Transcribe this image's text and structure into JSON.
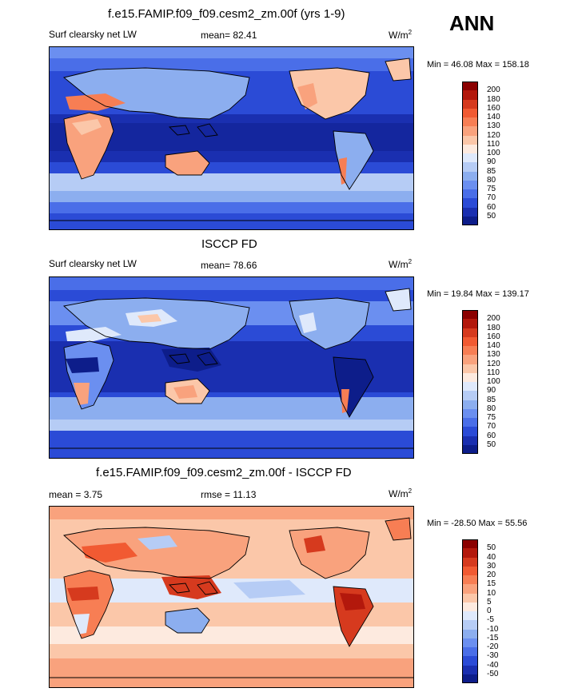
{
  "season": "ANN",
  "panels": [
    {
      "title": "f.e15.FAMIP.f09_f09.cesm2_zm.00f (yrs 1-9)",
      "left_label": "Surf clearsky net LW",
      "center_label": "mean=  82.41",
      "units": "W/m",
      "units_sup": "2",
      "minmax": "Min =  46.08 Max = 158.18",
      "levels": [
        "200",
        "180",
        "160",
        "140",
        "130",
        "120",
        "110",
        "100",
        "90",
        "85",
        "80",
        "75",
        "70",
        "60",
        "50"
      ],
      "colors": [
        "#8b0000",
        "#b3180c",
        "#d63a1e",
        "#f15a32",
        "#f77e54",
        "#f9a27d",
        "#fbc7a9",
        "#fdeadf",
        "#dfe9fb",
        "#b6ccf5",
        "#8caeef",
        "#6b8ff0",
        "#4a6ee8",
        "#2b4bd6",
        "#1a2fb0",
        "#0d1d8a"
      ]
    },
    {
      "title": "ISCCP FD",
      "left_label": "Surf clearsky net LW",
      "center_label": "mean=  78.66",
      "units": "W/m",
      "units_sup": "2",
      "minmax": "Min =  19.84 Max = 139.17",
      "levels": [
        "200",
        "180",
        "160",
        "140",
        "130",
        "120",
        "110",
        "100",
        "90",
        "85",
        "80",
        "75",
        "70",
        "60",
        "50"
      ],
      "colors": [
        "#8b0000",
        "#b3180c",
        "#d63a1e",
        "#f15a32",
        "#f77e54",
        "#f9a27d",
        "#fbc7a9",
        "#fdeadf",
        "#dfe9fb",
        "#b6ccf5",
        "#8caeef",
        "#6b8ff0",
        "#4a6ee8",
        "#2b4bd6",
        "#1a2fb0",
        "#0d1d8a"
      ]
    },
    {
      "title": "f.e15.FAMIP.f09_f09.cesm2_zm.00f - ISCCP FD",
      "left_label": "mean =   3.75",
      "center_label": "rmse =  11.13",
      "units": "W/m",
      "units_sup": "2",
      "minmax": "Min = -28.50 Max =  55.56",
      "levels": [
        "50",
        "40",
        "30",
        "20",
        "15",
        "10",
        "5",
        "0",
        "-5",
        "-10",
        "-15",
        "-20",
        "-30",
        "-40",
        "-50"
      ],
      "colors": [
        "#8b0000",
        "#b3180c",
        "#d63a1e",
        "#f15a32",
        "#f77e54",
        "#f9a27d",
        "#fbc7a9",
        "#fdeadf",
        "#dfe9fb",
        "#b6ccf5",
        "#8caeef",
        "#6b8ff0",
        "#4a6ee8",
        "#2b4bd6",
        "#1a2fb0",
        "#0d1d8a"
      ]
    }
  ]
}
